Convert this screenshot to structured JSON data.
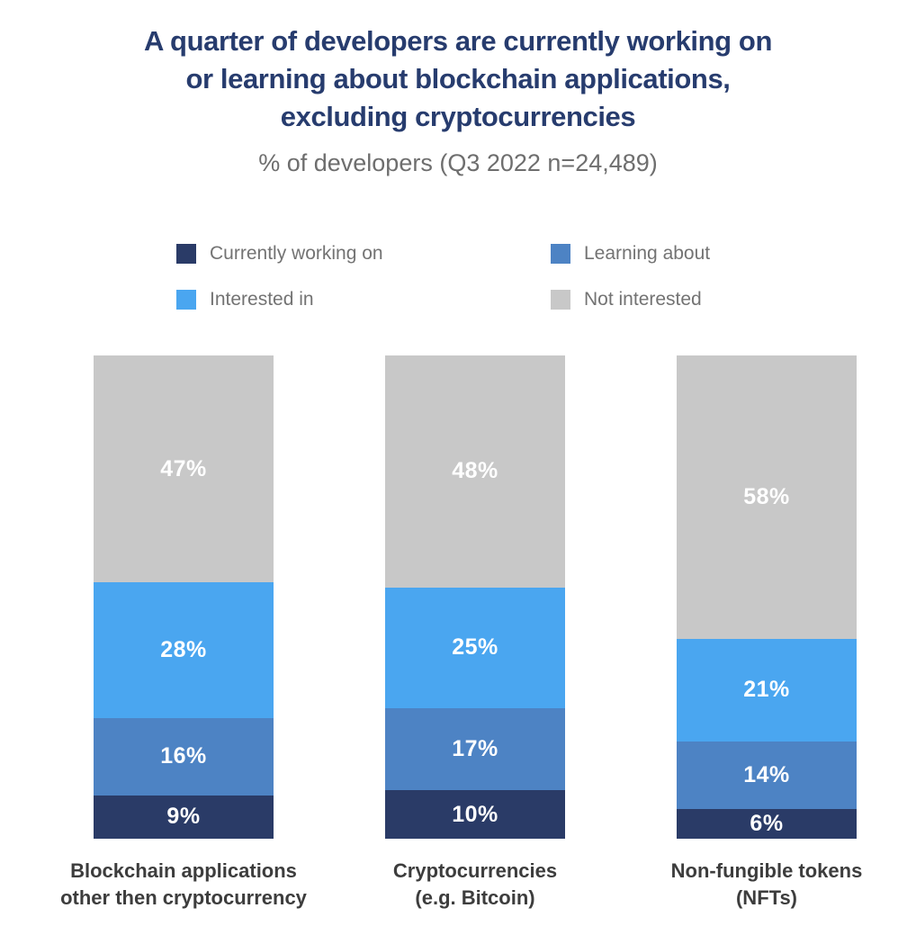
{
  "title": "A quarter of developers are currently working on or learning about blockchain applications, excluding cryptocurrencies",
  "title_lines": [
    "A quarter of developers are currently working on",
    "or learning about blockchain applications,",
    "excluding cryptocurrencies"
  ],
  "subtitle": "% of developers (Q3 2022 n=24,489)",
  "colors": {
    "background": "#ffffff",
    "title_text": "#273c6e",
    "subtitle_text": "#6e6e6e",
    "legend_text": "#737373",
    "category_label_text": "#3d3d3d",
    "value_label_text": "#ffffff"
  },
  "chart_data": {
    "type": "bar",
    "stacked": true,
    "orientation": "vertical",
    "unit": "%",
    "value_suffix": "%",
    "grid": false,
    "legend_position": "top",
    "categories": [
      {
        "line1": "Blockchain applications",
        "line2": "other then cryptocurrency"
      },
      {
        "line1": "Cryptocurrencies",
        "line2": "(e.g. Bitcoin)"
      },
      {
        "line1": "Non-fungible tokens",
        "line2": "(NFTs)"
      }
    ],
    "series": [
      {
        "name": "Currently working on",
        "color": "#2a3b67",
        "values": [
          9,
          10,
          6
        ]
      },
      {
        "name": "Learning about",
        "color": "#4d83c4",
        "values": [
          16,
          17,
          14
        ]
      },
      {
        "name": "Interested in",
        "color": "#4aa6f0",
        "values": [
          28,
          25,
          21
        ]
      },
      {
        "name": "Not interested",
        "color": "#c8c8c8",
        "values": [
          47,
          48,
          58
        ]
      }
    ]
  }
}
